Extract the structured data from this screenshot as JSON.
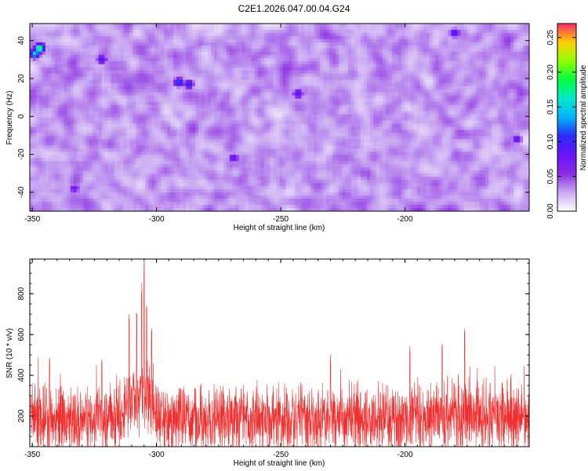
{
  "title": "C2E1.2026.047.00.04.G24",
  "chart_data": [
    {
      "type": "heatmap",
      "xlabel": "Height of straight line (km)",
      "ylabel": "Frequency (Hz)",
      "xlim": [
        -351,
        -150
      ],
      "ylim": [
        -50,
        49
      ],
      "x_ticks": [
        -350,
        -300,
        -250,
        -200
      ],
      "y_ticks": [
        -40,
        -20,
        0,
        20,
        40
      ],
      "colorbar": {
        "label": "Normalized spectral amplitude",
        "range": [
          0,
          0.27
        ],
        "ticks": [
          0.0,
          0.05,
          0.1,
          0.15,
          0.2,
          0.25
        ],
        "tick_labels": [
          "0.00",
          "0.05",
          "0.10",
          "0.15",
          "0.20",
          "0.25"
        ]
      },
      "colormap": [
        "#ffffff",
        "#c9a8f2",
        "#8a2be2",
        "#6a12ff",
        "#2a2aff",
        "#00b4ff",
        "#00e8c8",
        "#00ff40",
        "#90ff00",
        "#ffd000",
        "#ff2a6a"
      ],
      "background_level": 0.03,
      "hotspots": [
        {
          "x": -347,
          "y": 36,
          "value": 0.2
        },
        {
          "x": -349,
          "y": 33,
          "value": 0.16
        },
        {
          "x": -291,
          "y": 18,
          "value": 0.12
        },
        {
          "x": -287,
          "y": 17,
          "value": 0.11
        },
        {
          "x": -322,
          "y": 30,
          "value": 0.1
        },
        {
          "x": -243,
          "y": 12,
          "value": 0.1
        },
        {
          "x": -269,
          "y": -22,
          "value": 0.09
        },
        {
          "x": -180,
          "y": 44,
          "value": 0.1
        },
        {
          "x": -155,
          "y": -12,
          "value": 0.09
        },
        {
          "x": -333,
          "y": -38,
          "value": 0.08
        }
      ]
    },
    {
      "type": "line",
      "xlabel": "Height of straight line (km)",
      "ylabel": "SNR (10 * v/v)",
      "xlim": [
        -351,
        -150
      ],
      "ylim": [
        50,
        970
      ],
      "x_ticks": [
        -350,
        -300,
        -250,
        -200
      ],
      "y_ticks": [
        200,
        400,
        600,
        800
      ],
      "series_color": "#f03030",
      "baseline_level": 180,
      "peaks": [
        {
          "x": -305,
          "value": 970
        },
        {
          "x": -306,
          "value": 860
        },
        {
          "x": -308,
          "value": 720
        },
        {
          "x": -304,
          "value": 740
        },
        {
          "x": -302,
          "value": 640
        },
        {
          "x": -311,
          "value": 700
        },
        {
          "x": -176,
          "value": 630
        },
        {
          "x": -185,
          "value": 560
        },
        {
          "x": -198,
          "value": 545
        },
        {
          "x": -230,
          "value": 520
        },
        {
          "x": -322,
          "value": 495
        },
        {
          "x": -343,
          "value": 495
        }
      ]
    }
  ]
}
